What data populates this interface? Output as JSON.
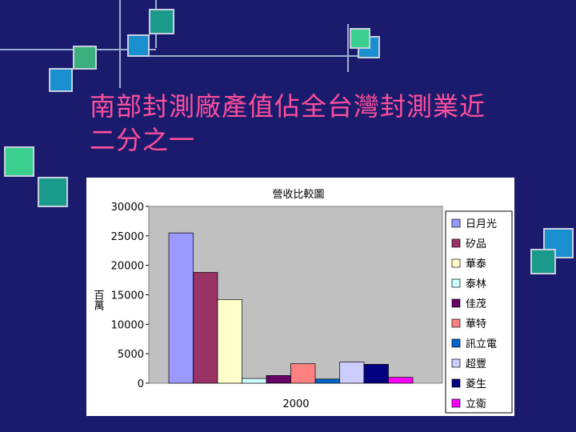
{
  "slide": {
    "title_line1": "南部封測廠產值佔全台灣封測業近",
    "title_line2": "二分之一"
  },
  "colors": {
    "background": "#1b1b6e",
    "title": "#ff4f9a",
    "plot_area": "#c0c0c0"
  },
  "chart_data": {
    "type": "bar",
    "title": "營收比較圖",
    "xlabel": "2000",
    "ylabel": "百萬",
    "ylim": [
      0,
      30000
    ],
    "yticks": [
      0,
      5000,
      10000,
      15000,
      20000,
      25000,
      30000
    ],
    "grid": false,
    "legend": "right",
    "categories": [
      "2000"
    ],
    "series": [
      {
        "name": "日月光",
        "values": [
          25500
        ],
        "color": "#9999ff"
      },
      {
        "name": "矽品",
        "values": [
          18800
        ],
        "color": "#993366"
      },
      {
        "name": "華泰",
        "values": [
          14200
        ],
        "color": "#ffffcc"
      },
      {
        "name": "泰林",
        "values": [
          800
        ],
        "color": "#ccffff"
      },
      {
        "name": "佳茂",
        "values": [
          1300
        ],
        "color": "#660066"
      },
      {
        "name": "華特",
        "values": [
          3300
        ],
        "color": "#ff8080"
      },
      {
        "name": "訊立電",
        "values": [
          700
        ],
        "color": "#0066cc"
      },
      {
        "name": "超豐",
        "values": [
          3600
        ],
        "color": "#ccccff"
      },
      {
        "name": "菱生",
        "values": [
          3200
        ],
        "color": "#000080"
      },
      {
        "name": "立衛",
        "values": [
          1000
        ],
        "color": "#ff00ff"
      }
    ]
  }
}
